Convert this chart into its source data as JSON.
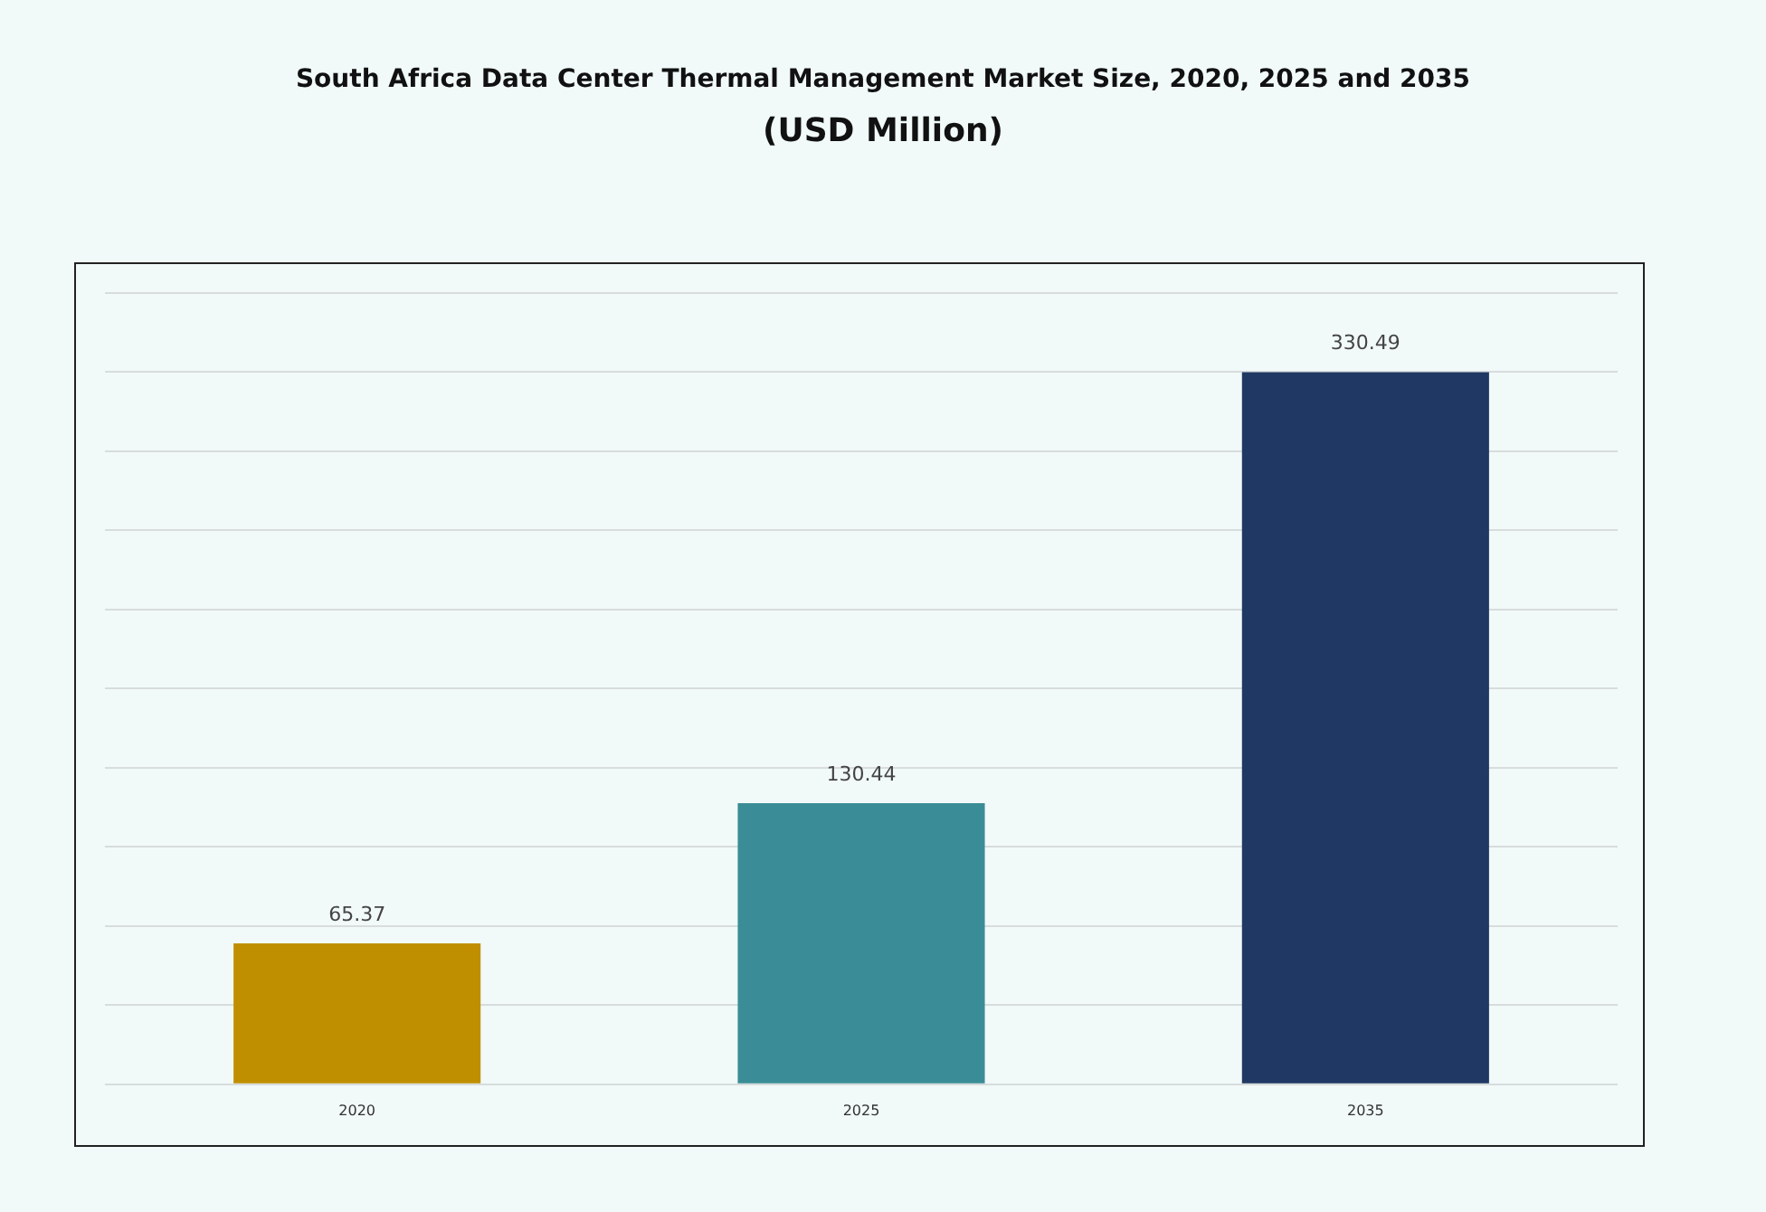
{
  "chart_data": {
    "type": "bar",
    "title": "South Africa Data Center Thermal Management Market Size, 2020, 2025 and 2035",
    "subtitle": "(USD Million)",
    "categories": [
      "2020",
      "2025",
      "2035"
    ],
    "values": [
      65.37,
      130.44,
      330.49
    ],
    "colors": [
      "#c08f00",
      "#3a8d96",
      "#1f3864"
    ],
    "ylim": [
      0,
      367.2
    ],
    "yticks": [
      {
        "value": 0,
        "label": null
      },
      {
        "value": 36.72,
        "label": null
      },
      {
        "value": 73.44,
        "label": null
      },
      {
        "value": 110.16,
        "label": null
      },
      {
        "value": 146.88,
        "label": null
      },
      {
        "value": 183.6,
        "label": null
      },
      {
        "value": 220.32,
        "label": null
      },
      {
        "value": 257.04,
        "label": null
      },
      {
        "value": 293.76,
        "label": null
      },
      {
        "value": 330.48,
        "label": null
      },
      {
        "value": 367.2,
        "label": null
      }
    ],
    "tick_labels": "x",
    "grid": "y",
    "legend": false,
    "data_labels": true
  }
}
